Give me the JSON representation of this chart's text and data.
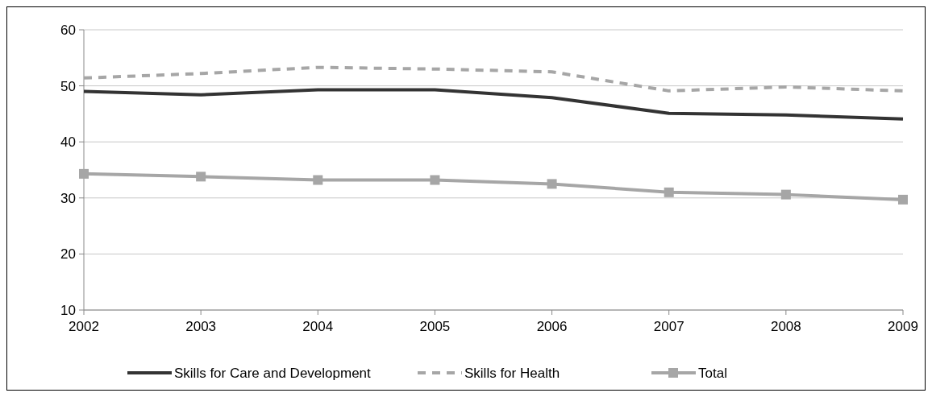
{
  "chart_data": {
    "type": "line",
    "categories": [
      "2002",
      "2003",
      "2004",
      "2005",
      "2006",
      "2007",
      "2008",
      "2009"
    ],
    "series": [
      {
        "name": "Skills for Care and Development",
        "color": "#333333",
        "line_style": "solid",
        "marker": "none",
        "values": [
          49.0,
          48.4,
          49.3,
          49.3,
          47.9,
          45.1,
          44.8,
          44.1
        ]
      },
      {
        "name": "Skills for Health",
        "color": "#a6a6a6",
        "line_style": "dashed",
        "marker": "none",
        "values": [
          51.4,
          52.2,
          53.3,
          53.0,
          52.5,
          49.1,
          49.8,
          49.1
        ]
      },
      {
        "name": "Total",
        "color": "#a6a6a6",
        "line_style": "solid",
        "marker": "square",
        "values": [
          34.3,
          33.8,
          33.2,
          33.2,
          32.5,
          31.0,
          30.6,
          29.7
        ]
      }
    ],
    "ylim": [
      10,
      60
    ],
    "yticks": [
      10,
      20,
      30,
      40,
      50,
      60
    ],
    "grid": "y",
    "legend": "bottom"
  }
}
